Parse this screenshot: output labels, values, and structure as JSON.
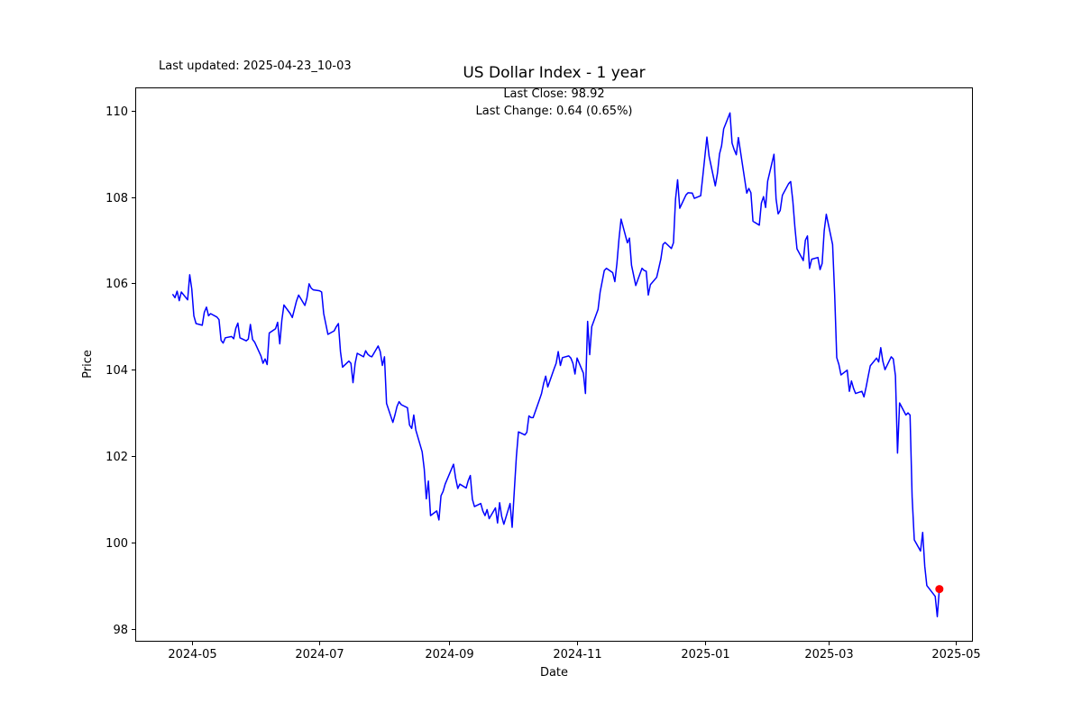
{
  "window": {
    "background": "#ffffff"
  },
  "header": {
    "last_updated_label": "Last updated: 2025-04-23_10-03",
    "title": "US Dollar Index - 1 year"
  },
  "annotation": {
    "last_close_line": "Last Close: 98.92",
    "last_change_line": "Last Change: 0.64 (0.65%)"
  },
  "chart_data": {
    "type": "line",
    "title": "US Dollar Index - 1 year",
    "xlabel": "Date",
    "ylabel": "Price",
    "grid": false,
    "legend_position": "none",
    "line_color": "#0000ff",
    "line_width": 1.5,
    "marker_color": "#ff0000",
    "axis_color": "#000000",
    "xlim": [
      "2024-04-04",
      "2025-05-09"
    ],
    "ylim": [
      97.7,
      110.54
    ],
    "yticks": [
      98,
      100,
      102,
      104,
      106,
      108,
      110
    ],
    "xticks": [
      {
        "date": "2024-05-01",
        "label": "2024-05"
      },
      {
        "date": "2024-07-01",
        "label": "2024-07"
      },
      {
        "date": "2024-09-01",
        "label": "2024-09"
      },
      {
        "date": "2024-11-01",
        "label": "2024-11"
      },
      {
        "date": "2025-01-01",
        "label": "2025-01"
      },
      {
        "date": "2025-03-01",
        "label": "2025-03"
      },
      {
        "date": "2025-05-01",
        "label": "2025-05"
      }
    ],
    "last_close": 98.92,
    "last_change": 0.64,
    "last_change_pct": "0.65%",
    "last_point": {
      "date": "2025-04-23",
      "value": 98.92
    },
    "series": [
      {
        "name": "US Dollar Index",
        "points": [
          [
            "2024-04-22",
            105.74
          ],
          [
            "2024-04-23",
            105.67
          ],
          [
            "2024-04-24",
            105.82
          ],
          [
            "2024-04-25",
            105.6
          ],
          [
            "2024-04-26",
            105.8
          ],
          [
            "2024-04-29",
            105.62
          ],
          [
            "2024-04-30",
            106.2
          ],
          [
            "2024-05-01",
            105.87
          ],
          [
            "2024-05-02",
            105.25
          ],
          [
            "2024-05-03",
            105.07
          ],
          [
            "2024-05-06",
            105.03
          ],
          [
            "2024-05-07",
            105.33
          ],
          [
            "2024-05-08",
            105.45
          ],
          [
            "2024-05-09",
            105.25
          ],
          [
            "2024-05-10",
            105.3
          ],
          [
            "2024-05-13",
            105.22
          ],
          [
            "2024-05-14",
            105.16
          ],
          [
            "2024-05-15",
            104.68
          ],
          [
            "2024-05-16",
            104.62
          ],
          [
            "2024-05-17",
            104.74
          ],
          [
            "2024-05-20",
            104.77
          ],
          [
            "2024-05-21",
            104.72
          ],
          [
            "2024-05-22",
            104.96
          ],
          [
            "2024-05-23",
            105.08
          ],
          [
            "2024-05-24",
            104.74
          ],
          [
            "2024-05-27",
            104.67
          ],
          [
            "2024-05-28",
            104.71
          ],
          [
            "2024-05-29",
            105.05
          ],
          [
            "2024-05-30",
            104.7
          ],
          [
            "2024-05-31",
            104.64
          ],
          [
            "2024-06-03",
            104.32
          ],
          [
            "2024-06-04",
            104.15
          ],
          [
            "2024-06-05",
            104.25
          ],
          [
            "2024-06-06",
            104.12
          ],
          [
            "2024-06-07",
            104.85
          ],
          [
            "2024-06-10",
            104.95
          ],
          [
            "2024-06-11",
            105.1
          ],
          [
            "2024-06-12",
            104.6
          ],
          [
            "2024-06-13",
            105.15
          ],
          [
            "2024-06-14",
            105.5
          ],
          [
            "2024-06-17",
            105.3
          ],
          [
            "2024-06-18",
            105.21
          ],
          [
            "2024-06-20",
            105.59
          ],
          [
            "2024-06-21",
            105.73
          ],
          [
            "2024-06-24",
            105.49
          ],
          [
            "2024-06-25",
            105.66
          ],
          [
            "2024-06-26",
            105.99
          ],
          [
            "2024-06-27",
            105.89
          ],
          [
            "2024-06-28",
            105.85
          ],
          [
            "2024-07-01",
            105.83
          ],
          [
            "2024-07-02",
            105.8
          ],
          [
            "2024-07-03",
            105.3
          ],
          [
            "2024-07-05",
            104.82
          ],
          [
            "2024-07-08",
            104.9
          ],
          [
            "2024-07-09",
            105.0
          ],
          [
            "2024-07-10",
            105.07
          ],
          [
            "2024-07-11",
            104.42
          ],
          [
            "2024-07-12",
            104.06
          ],
          [
            "2024-07-15",
            104.2
          ],
          [
            "2024-07-16",
            104.15
          ],
          [
            "2024-07-17",
            103.7
          ],
          [
            "2024-07-18",
            104.15
          ],
          [
            "2024-07-19",
            104.38
          ],
          [
            "2024-07-22",
            104.3
          ],
          [
            "2024-07-23",
            104.44
          ],
          [
            "2024-07-24",
            104.36
          ],
          [
            "2024-07-25",
            104.32
          ],
          [
            "2024-07-26",
            104.3
          ],
          [
            "2024-07-29",
            104.55
          ],
          [
            "2024-07-30",
            104.42
          ],
          [
            "2024-07-31",
            104.1
          ],
          [
            "2024-08-01",
            104.3
          ],
          [
            "2024-08-02",
            103.22
          ],
          [
            "2024-08-05",
            102.78
          ],
          [
            "2024-08-06",
            102.95
          ],
          [
            "2024-08-07",
            103.15
          ],
          [
            "2024-08-08",
            103.26
          ],
          [
            "2024-08-09",
            103.19
          ],
          [
            "2024-08-12",
            103.12
          ],
          [
            "2024-08-13",
            102.72
          ],
          [
            "2024-08-14",
            102.64
          ],
          [
            "2024-08-15",
            102.95
          ],
          [
            "2024-08-16",
            102.6
          ],
          [
            "2024-08-19",
            102.1
          ],
          [
            "2024-08-20",
            101.7
          ],
          [
            "2024-08-21",
            101.01
          ],
          [
            "2024-08-22",
            101.42
          ],
          [
            "2024-08-23",
            100.62
          ],
          [
            "2024-08-26",
            100.73
          ],
          [
            "2024-08-27",
            100.52
          ],
          [
            "2024-08-28",
            101.08
          ],
          [
            "2024-08-29",
            101.18
          ],
          [
            "2024-08-30",
            101.35
          ],
          [
            "2024-09-03",
            101.81
          ],
          [
            "2024-09-04",
            101.49
          ],
          [
            "2024-09-05",
            101.25
          ],
          [
            "2024-09-06",
            101.35
          ],
          [
            "2024-09-09",
            101.26
          ],
          [
            "2024-09-10",
            101.43
          ],
          [
            "2024-09-11",
            101.55
          ],
          [
            "2024-09-12",
            101.0
          ],
          [
            "2024-09-13",
            100.83
          ],
          [
            "2024-09-16",
            100.9
          ],
          [
            "2024-09-17",
            100.73
          ],
          [
            "2024-09-18",
            100.62
          ],
          [
            "2024-09-19",
            100.76
          ],
          [
            "2024-09-20",
            100.55
          ],
          [
            "2024-09-23",
            100.8
          ],
          [
            "2024-09-24",
            100.45
          ],
          [
            "2024-09-25",
            100.92
          ],
          [
            "2024-09-26",
            100.6
          ],
          [
            "2024-09-27",
            100.42
          ],
          [
            "2024-09-30",
            100.9
          ],
          [
            "2024-10-01",
            100.35
          ],
          [
            "2024-10-02",
            101.2
          ],
          [
            "2024-10-03",
            101.99
          ],
          [
            "2024-10-04",
            102.56
          ],
          [
            "2024-10-07",
            102.49
          ],
          [
            "2024-10-08",
            102.55
          ],
          [
            "2024-10-09",
            102.93
          ],
          [
            "2024-10-10",
            102.89
          ],
          [
            "2024-10-11",
            102.89
          ],
          [
            "2024-10-14",
            103.3
          ],
          [
            "2024-10-15",
            103.45
          ],
          [
            "2024-10-16",
            103.68
          ],
          [
            "2024-10-17",
            103.85
          ],
          [
            "2024-10-18",
            103.6
          ],
          [
            "2024-10-21",
            104.02
          ],
          [
            "2024-10-22",
            104.15
          ],
          [
            "2024-10-23",
            104.42
          ],
          [
            "2024-10-24",
            104.1
          ],
          [
            "2024-10-25",
            104.28
          ],
          [
            "2024-10-28",
            104.32
          ],
          [
            "2024-10-29",
            104.27
          ],
          [
            "2024-10-30",
            104.15
          ],
          [
            "2024-10-31",
            103.9
          ],
          [
            "2024-11-01",
            104.27
          ],
          [
            "2024-11-04",
            103.92
          ],
          [
            "2024-11-05",
            103.45
          ],
          [
            "2024-11-06",
            105.12
          ],
          [
            "2024-11-07",
            104.35
          ],
          [
            "2024-11-08",
            105.0
          ],
          [
            "2024-11-11",
            105.4
          ],
          [
            "2024-11-12",
            105.8
          ],
          [
            "2024-11-13",
            106.05
          ],
          [
            "2024-11-14",
            106.3
          ],
          [
            "2024-11-15",
            106.35
          ],
          [
            "2024-11-18",
            106.25
          ],
          [
            "2024-11-19",
            106.04
          ],
          [
            "2024-11-20",
            106.46
          ],
          [
            "2024-11-21",
            107.03
          ],
          [
            "2024-11-22",
            107.49
          ],
          [
            "2024-11-25",
            106.94
          ],
          [
            "2024-11-26",
            107.05
          ],
          [
            "2024-11-27",
            106.42
          ],
          [
            "2024-11-29",
            105.95
          ],
          [
            "2024-12-02",
            106.35
          ],
          [
            "2024-12-03",
            106.3
          ],
          [
            "2024-12-04",
            106.28
          ],
          [
            "2024-12-05",
            105.73
          ],
          [
            "2024-12-06",
            105.97
          ],
          [
            "2024-12-09",
            106.14
          ],
          [
            "2024-12-10",
            106.35
          ],
          [
            "2024-12-11",
            106.56
          ],
          [
            "2024-12-12",
            106.9
          ],
          [
            "2024-12-13",
            106.95
          ],
          [
            "2024-12-16",
            106.81
          ],
          [
            "2024-12-17",
            106.94
          ],
          [
            "2024-12-18",
            107.95
          ],
          [
            "2024-12-19",
            108.4
          ],
          [
            "2024-12-20",
            107.74
          ],
          [
            "2024-12-23",
            108.05
          ],
          [
            "2024-12-24",
            108.1
          ],
          [
            "2024-12-26",
            108.09
          ],
          [
            "2024-12-27",
            107.97
          ],
          [
            "2024-12-30",
            108.03
          ],
          [
            "2024-12-31",
            108.47
          ],
          [
            "2025-01-02",
            109.39
          ],
          [
            "2025-01-03",
            108.95
          ],
          [
            "2025-01-06",
            108.26
          ],
          [
            "2025-01-07",
            108.55
          ],
          [
            "2025-01-08",
            109.0
          ],
          [
            "2025-01-09",
            109.19
          ],
          [
            "2025-01-10",
            109.58
          ],
          [
            "2025-01-13",
            109.95
          ],
          [
            "2025-01-14",
            109.25
          ],
          [
            "2025-01-15",
            109.1
          ],
          [
            "2025-01-16",
            108.98
          ],
          [
            "2025-01-17",
            109.38
          ],
          [
            "2025-01-21",
            108.09
          ],
          [
            "2025-01-22",
            108.2
          ],
          [
            "2025-01-23",
            108.1
          ],
          [
            "2025-01-24",
            107.44
          ],
          [
            "2025-01-27",
            107.35
          ],
          [
            "2025-01-28",
            107.86
          ],
          [
            "2025-01-29",
            108.01
          ],
          [
            "2025-01-30",
            107.76
          ],
          [
            "2025-01-31",
            108.37
          ],
          [
            "2025-02-03",
            108.99
          ],
          [
            "2025-02-04",
            107.96
          ],
          [
            "2025-02-05",
            107.61
          ],
          [
            "2025-02-06",
            107.69
          ],
          [
            "2025-02-07",
            108.04
          ],
          [
            "2025-02-10",
            108.31
          ],
          [
            "2025-02-11",
            108.36
          ],
          [
            "2025-02-12",
            107.91
          ],
          [
            "2025-02-13",
            107.3
          ],
          [
            "2025-02-14",
            106.8
          ],
          [
            "2025-02-17",
            106.53
          ],
          [
            "2025-02-18",
            107.0
          ],
          [
            "2025-02-19",
            107.1
          ],
          [
            "2025-02-20",
            106.35
          ],
          [
            "2025-02-21",
            106.56
          ],
          [
            "2025-02-24",
            106.6
          ],
          [
            "2025-02-25",
            106.32
          ],
          [
            "2025-02-26",
            106.46
          ],
          [
            "2025-02-27",
            107.22
          ],
          [
            "2025-02-28",
            107.6
          ],
          [
            "2025-03-03",
            106.9
          ],
          [
            "2025-03-04",
            105.74
          ],
          [
            "2025-03-05",
            104.28
          ],
          [
            "2025-03-06",
            104.12
          ],
          [
            "2025-03-07",
            103.88
          ],
          [
            "2025-03-10",
            103.99
          ],
          [
            "2025-03-11",
            103.5
          ],
          [
            "2025-03-12",
            103.74
          ],
          [
            "2025-03-13",
            103.57
          ],
          [
            "2025-03-14",
            103.45
          ],
          [
            "2025-03-17",
            103.5
          ],
          [
            "2025-03-18",
            103.37
          ],
          [
            "2025-03-19",
            103.6
          ],
          [
            "2025-03-20",
            103.85
          ],
          [
            "2025-03-21",
            104.09
          ],
          [
            "2025-03-24",
            104.27
          ],
          [
            "2025-03-25",
            104.18
          ],
          [
            "2025-03-26",
            104.51
          ],
          [
            "2025-03-27",
            104.2
          ],
          [
            "2025-03-28",
            104.0
          ],
          [
            "2025-03-31",
            104.3
          ],
          [
            "2025-04-01",
            104.25
          ],
          [
            "2025-04-02",
            103.86
          ],
          [
            "2025-04-03",
            102.07
          ],
          [
            "2025-04-04",
            103.23
          ],
          [
            "2025-04-07",
            102.95
          ],
          [
            "2025-04-08",
            103.0
          ],
          [
            "2025-04-09",
            102.95
          ],
          [
            "2025-04-10",
            101.05
          ],
          [
            "2025-04-11",
            100.06
          ],
          [
            "2025-04-14",
            99.8
          ],
          [
            "2025-04-15",
            100.23
          ],
          [
            "2025-04-16",
            99.45
          ],
          [
            "2025-04-17",
            99.0
          ],
          [
            "2025-04-21",
            98.75
          ],
          [
            "2025-04-22",
            98.28
          ],
          [
            "2025-04-23",
            98.92
          ]
        ]
      }
    ]
  }
}
